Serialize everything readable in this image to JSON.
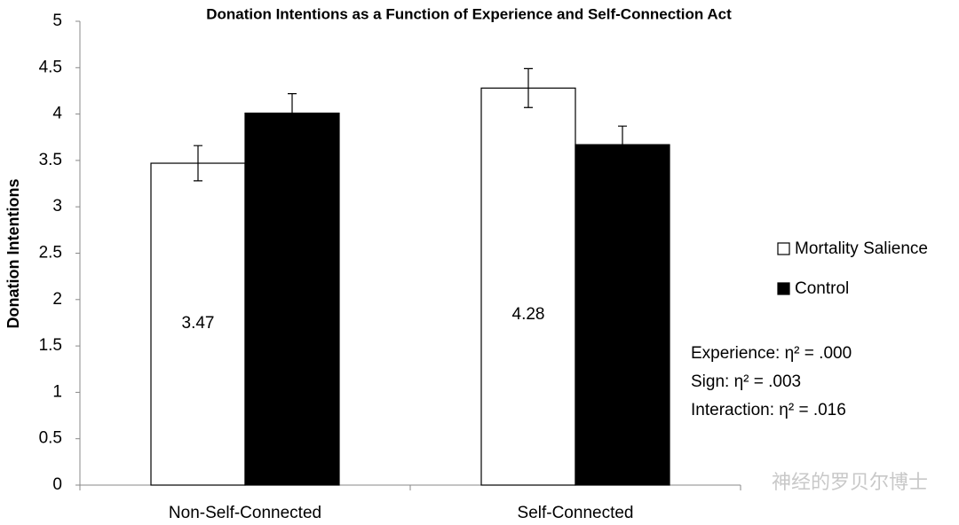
{
  "chart_data": {
    "type": "bar",
    "title": "Donation Intentions as a Function of Experience and Self-Connection Act",
    "y_label": "Donation Intentions",
    "categories": [
      "Non-Self-Connected",
      "Self-Connected"
    ],
    "series": [
      {
        "name": "Mortality Salience",
        "color": "#ffffff",
        "label_color": "#000000",
        "values": [
          3.47,
          4.28
        ],
        "errors": [
          0.19,
          0.21
        ]
      },
      {
        "name": "Control",
        "color": "#000000",
        "label_color": "#ffffff",
        "values": [
          4.01,
          3.67
        ],
        "errors": [
          0.21,
          0.2
        ]
      }
    ],
    "ylim": [
      0,
      5
    ],
    "yticks": [
      0,
      0.5,
      1,
      1.5,
      2,
      2.5,
      3,
      3.5,
      4,
      4.5,
      5
    ],
    "annotations": [
      "Experience: η² = .000",
      "Sign: η² = .003",
      "Interaction: η² = .016"
    ],
    "watermark": "神经的罗贝尔博士",
    "legend": "right"
  }
}
